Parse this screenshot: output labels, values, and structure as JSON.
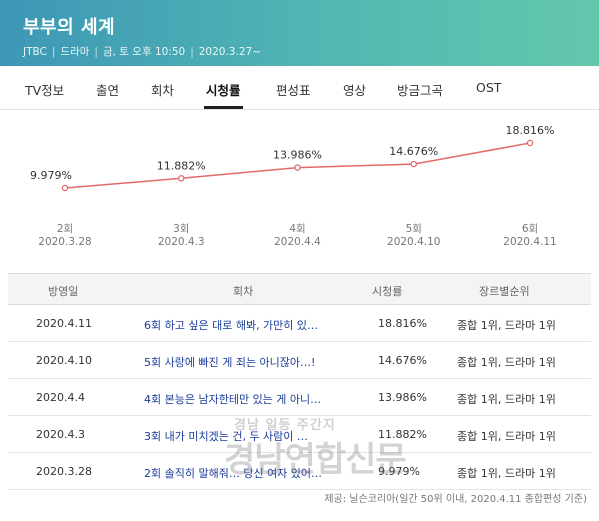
{
  "header": {
    "title": "부부의 세계",
    "channel": "JTBC",
    "genre": "드라마",
    "schedule": "금, 토 오후 10:50",
    "premiere": "2020.3.27~"
  },
  "tabs": [
    {
      "label": "TV정보"
    },
    {
      "label": "출연"
    },
    {
      "label": "회차"
    },
    {
      "label": "시청률",
      "active": true
    },
    {
      "label": "편성표"
    },
    {
      "label": "영상"
    },
    {
      "label": "방금그곡"
    },
    {
      "label": "OST"
    }
  ],
  "chart_data": {
    "type": "line",
    "x": [
      "2회 2020.3.28",
      "3회 2020.4.3",
      "4회 2020.4.4",
      "5회 2020.4.10",
      "6회 2020.4.11"
    ],
    "x_top": [
      "2회",
      "3회",
      "4회",
      "5회",
      "6회"
    ],
    "x_bottom": [
      "2020.3.28",
      "2020.4.3",
      "2020.4.4",
      "2020.4.10",
      "2020.4.11"
    ],
    "values": [
      9.979,
      11.882,
      13.986,
      14.676,
      18.816
    ],
    "value_labels": [
      "9.979%",
      "11.882%",
      "13.986%",
      "14.676%",
      "18.816%"
    ],
    "ylim": [
      9.979,
      18.816
    ],
    "grid": false,
    "color": "#e46a6a"
  },
  "table": {
    "headers": {
      "date": "방영일",
      "episode": "회차",
      "rating": "시청률",
      "rank": "장르별순위"
    },
    "rows": [
      {
        "date": "2020.4.11",
        "episode": "6회 하고 싶은 대로 해봐, 가만히 있…",
        "rating": "18.816%",
        "rank": "종합 1위, 드라마 1위"
      },
      {
        "date": "2020.4.10",
        "episode": "5회 사랑에 빠진 게 죄는 아니잖아…!",
        "rating": "14.676%",
        "rank": "종합 1위, 드라마 1위"
      },
      {
        "date": "2020.4.4",
        "episode": "4회 본능은 남자한테만 있는 게 아니…",
        "rating": "13.986%",
        "rank": "종합 1위, 드라마 1위"
      },
      {
        "date": "2020.4.3",
        "episode": "3회 내가 미치겠는 건, 두 사람이 …",
        "rating": "11.882%",
        "rank": "종합 1위, 드라마 1위"
      },
      {
        "date": "2020.3.28",
        "episode": "2회 솔직히 말해줘… 당신 여자 있어…",
        "rating": "9.979%",
        "rank": "종합 1위, 드라마 1위"
      }
    ]
  },
  "source": "제공: 닐슨코리아(일간 50위 이내, 2020.4.11 종합편성 기준)",
  "watermark": {
    "line1": "경남 일등 주간지",
    "line2": "경남연합신문"
  }
}
